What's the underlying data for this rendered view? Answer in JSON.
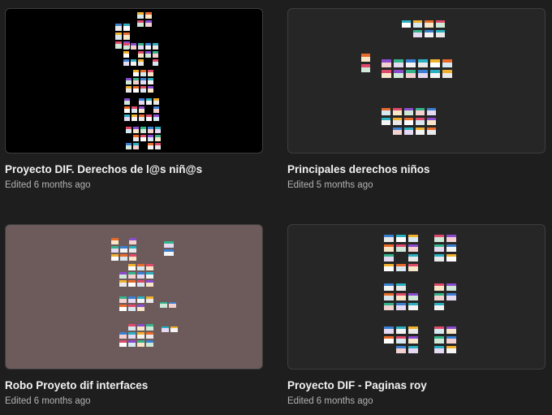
{
  "files": [
    {
      "title": "Proyecto DIF. Derechos de l@s niñ@s",
      "edited": "Edited 6 months ago",
      "thumb_bg": "#000000",
      "accent": "#3cc8a0"
    },
    {
      "title": "Principales derechos niños",
      "edited": "Edited 5 months ago",
      "thumb_bg": "#262626",
      "accent": "#2a8fa8"
    },
    {
      "title": "Robo Proyeto dif interfaces",
      "edited": "Edited 6 months ago",
      "thumb_bg": "#6d5a5a",
      "accent": "#7b3fa8"
    },
    {
      "title": "Proyecto DIF - Paginas roy",
      "edited": "Edited 6 months ago",
      "thumb_bg": "#262626",
      "accent": "#e8a030"
    }
  ]
}
